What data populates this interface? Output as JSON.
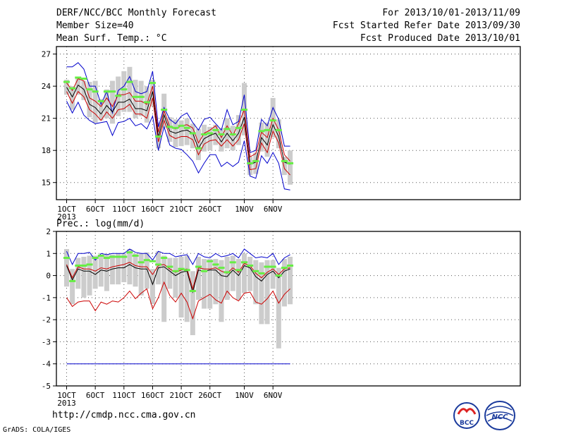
{
  "header": {
    "title": "DERF/NCC/BCC Monthly Forecast",
    "member": "Member Size=40",
    "variable": "Mean Surf. Temp.: °C",
    "period": "For 2013/10/01-2013/11/09",
    "start": "Fcst Started Refer Date 2013/09/30",
    "produced": "Fcst Produced Date 2013/10/01"
  },
  "footer": {
    "url": "http://cmdp.ncc.cma.gov.cn",
    "credit": "GrADS: COLA/IGES",
    "logo_left": "BCC",
    "logo_right": "NCC"
  },
  "colors": {
    "ensemble_mean": "#000000",
    "range": "#0000cc",
    "spread": "#cc0000",
    "observed": "#66ee44",
    "boxes": "#cccccc"
  },
  "chart_data": [
    {
      "type": "line",
      "ylabel": "Mean Surf. Temp.: °C",
      "ylim": [
        13.4,
        27.7
      ],
      "yticks": [
        15,
        18,
        21,
        24,
        27
      ],
      "x_tick_labels": [
        "1OCT\n2013",
        "6OCT",
        "11OCT",
        "16OCT",
        "21OCT",
        "26OCT",
        "1NOV",
        "6NOV"
      ],
      "x_tick_days": [
        1,
        6,
        11,
        16,
        21,
        26,
        32,
        37
      ],
      "days": [
        1,
        2,
        3,
        4,
        5,
        6,
        7,
        8,
        9,
        10,
        11,
        12,
        13,
        14,
        15,
        16,
        17,
        18,
        19,
        20,
        21,
        22,
        23,
        24,
        25,
        26,
        27,
        28,
        29,
        30,
        31,
        32,
        33,
        34,
        35,
        36,
        37,
        38,
        39,
        40
      ],
      "grid": true,
      "series": [
        {
          "role": "max",
          "values": [
            25.8,
            25.8,
            26.2,
            25.6,
            24.0,
            24.0,
            22.3,
            23.5,
            21.5,
            23.6,
            24.0,
            24.9,
            23.5,
            23.3,
            23.5,
            25.4,
            20.2,
            22.0,
            20.9,
            20.5,
            21.2,
            21.5,
            20.6,
            19.9,
            20.9,
            21.1,
            20.5,
            19.9,
            21.8,
            20.4,
            20.7,
            23.2,
            17.8,
            18.0,
            20.9,
            20.3,
            22.0,
            20.9,
            18.4,
            18.4
          ]
        },
        {
          "role": "upper",
          "values": [
            24.3,
            23.6,
            24.7,
            24.5,
            22.9,
            22.6,
            22.1,
            22.9,
            22.1,
            23.2,
            23.2,
            23.4,
            22.6,
            22.6,
            22.3,
            24.0,
            19.7,
            21.7,
            20.2,
            20.0,
            20.3,
            20.4,
            20.1,
            18.7,
            19.6,
            19.9,
            20.3,
            19.2,
            20.3,
            19.4,
            20.5,
            21.8,
            17.4,
            17.7,
            19.7,
            19.2,
            21.0,
            19.9,
            17.6,
            17.0
          ]
        },
        {
          "role": "mean",
          "values": [
            23.9,
            23.0,
            24.1,
            23.7,
            22.3,
            22.0,
            21.4,
            22.2,
            21.6,
            22.5,
            22.5,
            22.8,
            21.9,
            21.9,
            21.7,
            23.5,
            19.2,
            21.3,
            19.8,
            19.6,
            19.8,
            19.9,
            19.6,
            18.2,
            19.1,
            19.4,
            19.6,
            18.8,
            19.6,
            18.9,
            19.6,
            21.1,
            16.7,
            16.9,
            19.2,
            18.5,
            20.4,
            19.3,
            16.9,
            16.7
          ]
        },
        {
          "role": "lower",
          "values": [
            23.5,
            22.4,
            23.5,
            23.0,
            21.8,
            21.4,
            20.8,
            21.6,
            21.0,
            21.8,
            21.9,
            22.3,
            21.4,
            21.4,
            21.0,
            22.9,
            18.8,
            20.8,
            19.4,
            19.1,
            19.3,
            19.3,
            19.0,
            17.6,
            18.6,
            18.9,
            19.0,
            18.4,
            19.0,
            18.4,
            19.0,
            20.5,
            16.2,
            16.3,
            18.7,
            17.8,
            19.8,
            18.7,
            16.3,
            15.7
          ]
        },
        {
          "role": "min",
          "values": [
            22.6,
            21.5,
            22.5,
            21.3,
            20.8,
            20.5,
            20.6,
            20.7,
            19.4,
            20.6,
            20.7,
            21.0,
            20.3,
            20.5,
            20.0,
            21.2,
            18.0,
            20.2,
            18.5,
            18.2,
            18.1,
            17.6,
            17.0,
            15.9,
            16.8,
            17.6,
            17.6,
            16.5,
            16.9,
            16.5,
            16.9,
            18.9,
            15.6,
            15.4,
            17.5,
            16.8,
            17.8,
            16.8,
            14.4,
            14.3
          ]
        },
        {
          "role": "observed",
          "values": [
            24.4,
            23.8,
            24.8,
            24.7,
            23.7,
            23.5,
            22.6,
            23.5,
            23.5,
            23.1,
            23.7,
            24.4,
            23.0,
            23.0,
            22.5,
            24.3,
            19.3,
            21.8,
            20.2,
            20.1,
            20.3,
            20.1,
            19.6,
            18.2,
            19.5,
            19.6,
            19.9,
            19.5,
            20.0,
            19.5,
            20.1,
            21.8,
            16.8,
            17.0,
            19.8,
            19.9,
            20.8,
            19.9,
            17.0,
            16.8
          ]
        },
        {
          "role": "box_high",
          "values": [
            24.6,
            24.0,
            24.8,
            24.5,
            24.4,
            24.5,
            22.8,
            23.7,
            24.5,
            24.9,
            25.4,
            25.8,
            24.6,
            24.5,
            24.0,
            24.6,
            20.6,
            23.3,
            21.1,
            20.9,
            20.8,
            21.0,
            20.5,
            20.0,
            20.4,
            20.2,
            20.4,
            20.1,
            21.0,
            20.3,
            21.3,
            24.3,
            17.4,
            17.8,
            20.6,
            20.6,
            22.9,
            20.9,
            17.4,
            18.0
          ]
        },
        {
          "role": "box_low",
          "values": [
            23.2,
            21.8,
            23.2,
            22.7,
            21.1,
            20.6,
            20.8,
            21.0,
            20.5,
            21.2,
            21.6,
            21.6,
            21.0,
            21.2,
            20.6,
            22.1,
            18.2,
            20.1,
            18.8,
            18.3,
            18.4,
            18.5,
            18.2,
            17.1,
            17.9,
            18.0,
            18.5,
            17.9,
            18.2,
            18.0,
            18.5,
            19.4,
            15.7,
            15.8,
            17.9,
            17.4,
            19.2,
            18.2,
            15.7,
            14.8
          ]
        }
      ]
    },
    {
      "type": "line",
      "ylabel": "Prec.: log(mm/d)",
      "ylim": [
        -5,
        2
      ],
      "yticks": [
        -5,
        -4,
        -3,
        -2,
        -1,
        0,
        1,
        2
      ],
      "x_tick_labels": [
        "1OCT\n2013",
        "6OCT",
        "11OCT",
        "16OCT",
        "21OCT",
        "26OCT",
        "1NOV",
        "6NOV"
      ],
      "x_tick_days": [
        1,
        6,
        11,
        16,
        21,
        26,
        32,
        37
      ],
      "days": [
        1,
        2,
        3,
        4,
        5,
        6,
        7,
        8,
        9,
        10,
        11,
        12,
        13,
        14,
        15,
        16,
        17,
        18,
        19,
        20,
        21,
        22,
        23,
        24,
        25,
        26,
        27,
        28,
        29,
        30,
        31,
        32,
        33,
        34,
        35,
        36,
        37,
        38,
        39,
        40
      ],
      "grid": true,
      "series": [
        {
          "role": "max",
          "values": [
            1.1,
            0.5,
            1.0,
            1.0,
            1.05,
            0.7,
            1.0,
            0.95,
            1.0,
            1.0,
            1.0,
            1.2,
            1.05,
            1.0,
            1.0,
            0.7,
            1.1,
            1.0,
            1.0,
            0.85,
            0.9,
            0.95,
            0.5,
            1.0,
            0.85,
            0.8,
            1.0,
            0.85,
            0.9,
            1.0,
            0.8,
            1.2,
            1.0,
            0.8,
            0.85,
            0.8,
            1.0,
            0.5,
            0.8,
            0.95
          ]
        },
        {
          "role": "upper",
          "values": [
            0.5,
            -0.1,
            0.4,
            0.3,
            0.3,
            0.2,
            0.35,
            0.3,
            0.4,
            0.45,
            0.5,
            0.6,
            0.45,
            0.4,
            0.4,
            0.05,
            0.45,
            0.5,
            0.3,
            0.15,
            0.25,
            0.3,
            -0.6,
            0.35,
            0.3,
            0.3,
            0.35,
            0.2,
            0.1,
            0.35,
            0.15,
            0.55,
            0.45,
            0.1,
            -0.1,
            0.15,
            0.3,
            0.05,
            0.3,
            0.35
          ]
        },
        {
          "role": "mean",
          "values": [
            0.45,
            -0.2,
            0.3,
            0.2,
            0.2,
            0.05,
            0.25,
            0.2,
            0.3,
            0.35,
            0.35,
            0.5,
            0.35,
            0.3,
            0.3,
            -0.4,
            0.35,
            0.4,
            0.2,
            0.0,
            0.15,
            0.2,
            -0.75,
            0.25,
            0.2,
            0.25,
            0.25,
            0.0,
            -0.05,
            0.25,
            0.0,
            0.45,
            0.35,
            -0.05,
            -0.25,
            0.05,
            0.2,
            -0.1,
            0.2,
            0.3
          ]
        },
        {
          "role": "lower",
          "values": [
            -1.0,
            -1.4,
            -1.2,
            -1.15,
            -1.15,
            -1.6,
            -1.2,
            -1.3,
            -1.15,
            -1.2,
            -1.0,
            -0.7,
            -1.05,
            -0.8,
            -0.6,
            -1.5,
            -1.0,
            -0.3,
            -0.9,
            -1.2,
            -0.8,
            -1.2,
            -1.95,
            -1.15,
            -1.0,
            -0.85,
            -1.1,
            -1.25,
            -0.7,
            -1.0,
            -1.15,
            -0.8,
            -0.75,
            -1.2,
            -1.3,
            -1.05,
            -0.7,
            -1.25,
            -0.85,
            -0.6
          ]
        },
        {
          "role": "min",
          "values": [
            -4.0,
            -4.0,
            -4.0,
            -4.0,
            -4.0,
            -4.0,
            -4.0,
            -4.0,
            -4.0,
            -4.0,
            -4.0,
            -4.0,
            -4.0,
            -4.0,
            -4.0,
            -4.0,
            -4.0,
            -4.0,
            -4.0,
            -4.0,
            -4.0,
            -4.0,
            -4.0,
            -4.0,
            -4.0,
            -4.0,
            -4.0,
            -4.0,
            -4.0,
            -4.0,
            -4.0,
            -4.0,
            -4.0,
            -4.0,
            -4.0,
            -4.0,
            -4.0,
            -4.0,
            -4.0,
            -4.0
          ]
        },
        {
          "role": "observed",
          "values": [
            0.8,
            -0.25,
            0.45,
            0.45,
            0.5,
            0.8,
            0.9,
            0.8,
            0.85,
            0.85,
            0.85,
            1.05,
            0.9,
            0.6,
            0.7,
            0.65,
            0.5,
            0.8,
            0.4,
            0.2,
            0.3,
            0.25,
            -0.7,
            0.4,
            0.2,
            0.65,
            0.5,
            0.35,
            0.15,
            0.6,
            0.25,
            0.6,
            0.45,
            0.2,
            0.1,
            0.4,
            0.4,
            0.0,
            0.35,
            0.45
          ]
        },
        {
          "role": "box_high",
          "values": [
            1.2,
            0.3,
            0.8,
            0.85,
            0.9,
            0.9,
            0.95,
            0.95,
            0.95,
            1.0,
            1.0,
            1.2,
            1.0,
            1.0,
            1.05,
            0.3,
            1.1,
            0.9,
            0.8,
            0.8,
            0.85,
            0.9,
            0.2,
            0.85,
            0.75,
            0.75,
            0.75,
            0.7,
            0.85,
            0.9,
            0.75,
            1.0,
            0.85,
            0.7,
            0.6,
            0.7,
            0.7,
            0.35,
            0.75,
            0.85
          ]
        },
        {
          "role": "box_low",
          "values": [
            -0.5,
            -1.3,
            -0.6,
            -1.0,
            -0.9,
            -0.6,
            -0.5,
            -0.7,
            -0.4,
            -0.4,
            -0.3,
            -0.4,
            -0.5,
            -0.9,
            -0.6,
            -1.3,
            -0.4,
            -2.1,
            -0.6,
            -1.0,
            -1.9,
            -2.1,
            -2.7,
            -1.1,
            -1.5,
            -1.5,
            -1.3,
            -2.1,
            -1.1,
            -0.7,
            -1.1,
            -0.8,
            -0.7,
            -1.3,
            -2.2,
            -2.2,
            -0.6,
            -3.3,
            -1.4,
            -1.3
          ]
        }
      ]
    }
  ]
}
